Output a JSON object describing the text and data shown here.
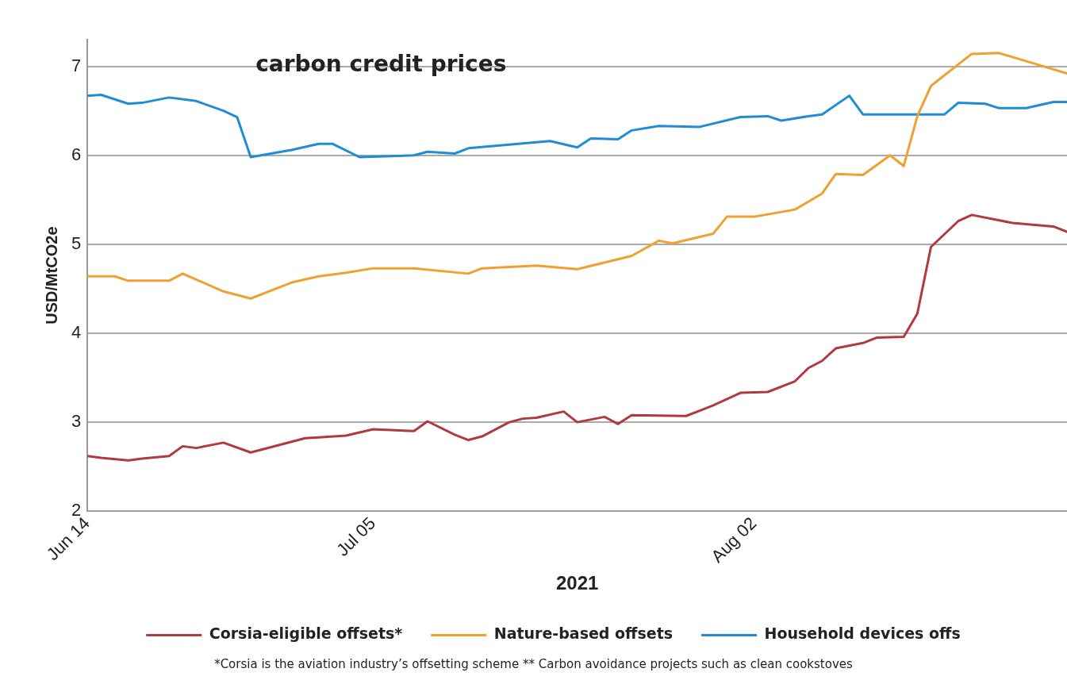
{
  "chart_data": {
    "type": "line",
    "title": "carbon credit prices",
    "xlabel": "2021",
    "ylabel": "USD/MtCO2e",
    "xlim": [
      "2021-06-14",
      "2021-08-25"
    ],
    "xticks": [
      {
        "value": "2021-06-14",
        "label": "Jun 14"
      },
      {
        "value": "2021-07-05",
        "label": "Jul 05"
      },
      {
        "value": "2021-08-02",
        "label": "Aug 02"
      }
    ],
    "ylim": [
      2,
      7.3
    ],
    "yticks": [
      2,
      3,
      4,
      5,
      6,
      7
    ],
    "grid": "y",
    "legend": "bottom",
    "marker": "none",
    "line_style": "solid",
    "annotations": [
      "*Corsia is the aviation industry’s offsetting scheme  ** Carbon avoidance projects such as clean cookstoves"
    ],
    "series": [
      {
        "name": "Corsia-eligible offsets*",
        "color": "#b03a3e",
        "x": [
          "2021-06-14",
          "2021-06-15",
          "2021-06-17",
          "2021-06-18",
          "2021-06-20",
          "2021-06-21",
          "2021-06-22",
          "2021-06-24",
          "2021-06-26",
          "2021-06-28",
          "2021-06-30",
          "2021-07-01",
          "2021-07-03",
          "2021-07-05",
          "2021-07-08",
          "2021-07-09",
          "2021-07-11",
          "2021-07-12",
          "2021-07-13",
          "2021-07-15",
          "2021-07-16",
          "2021-07-17",
          "2021-07-19",
          "2021-07-20",
          "2021-07-22",
          "2021-07-23",
          "2021-07-24",
          "2021-07-28",
          "2021-07-29",
          "2021-07-30",
          "2021-08-01",
          "2021-08-03",
          "2021-08-05",
          "2021-08-06",
          "2021-08-07",
          "2021-08-08",
          "2021-08-10",
          "2021-08-11",
          "2021-08-13",
          "2021-08-14",
          "2021-08-15",
          "2021-08-17",
          "2021-08-18",
          "2021-08-21",
          "2021-08-24",
          "2021-08-25"
        ],
        "values": [
          2.62,
          2.6,
          2.57,
          2.59,
          2.62,
          2.73,
          2.71,
          2.77,
          2.66,
          2.74,
          2.82,
          2.83,
          2.85,
          2.92,
          2.9,
          3.01,
          2.86,
          2.8,
          2.84,
          3.0,
          3.04,
          3.05,
          3.12,
          3.0,
          3.06,
          2.98,
          3.08,
          3.07,
          3.13,
          3.19,
          3.33,
          3.34,
          3.46,
          3.61,
          3.69,
          3.83,
          3.89,
          3.95,
          3.96,
          4.22,
          4.97,
          5.26,
          5.33,
          5.24,
          5.2,
          5.14
        ]
      },
      {
        "name": "Nature-based offsets",
        "color": "#f0a030",
        "x": [
          "2021-06-14",
          "2021-06-16",
          "2021-06-17",
          "2021-06-20",
          "2021-06-21",
          "2021-06-24",
          "2021-06-26",
          "2021-06-29",
          "2021-07-01",
          "2021-07-03",
          "2021-07-05",
          "2021-07-08",
          "2021-07-12",
          "2021-07-13",
          "2021-07-17",
          "2021-07-20",
          "2021-07-24",
          "2021-07-26",
          "2021-07-27",
          "2021-07-30",
          "2021-07-31",
          "2021-08-02",
          "2021-08-05",
          "2021-08-07",
          "2021-08-08",
          "2021-08-10",
          "2021-08-12",
          "2021-08-13",
          "2021-08-14",
          "2021-08-15",
          "2021-08-18",
          "2021-08-20",
          "2021-08-25"
        ],
        "values": [
          4.64,
          4.64,
          4.59,
          4.59,
          4.67,
          4.47,
          4.39,
          4.57,
          4.64,
          4.68,
          4.73,
          4.73,
          4.67,
          4.73,
          4.76,
          4.72,
          4.87,
          5.04,
          5.01,
          5.12,
          5.31,
          5.31,
          5.39,
          5.57,
          5.79,
          5.78,
          6.0,
          5.88,
          6.44,
          6.78,
          7.14,
          7.15,
          6.92
        ]
      },
      {
        "name": "Household devices offs",
        "color": "#1f8dd6",
        "x": [
          "2021-06-14",
          "2021-06-15",
          "2021-06-17",
          "2021-06-18",
          "2021-06-20",
          "2021-06-22",
          "2021-06-24",
          "2021-06-25",
          "2021-06-26",
          "2021-06-29",
          "2021-07-01",
          "2021-07-02",
          "2021-07-04",
          "2021-07-08",
          "2021-07-09",
          "2021-07-11",
          "2021-07-12",
          "2021-07-18",
          "2021-07-20",
          "2021-07-21",
          "2021-07-23",
          "2021-07-24",
          "2021-07-26",
          "2021-07-29",
          "2021-08-01",
          "2021-08-03",
          "2021-08-04",
          "2021-08-06",
          "2021-08-07",
          "2021-08-09",
          "2021-08-10",
          "2021-08-16",
          "2021-08-17",
          "2021-08-19",
          "2021-08-20",
          "2021-08-22",
          "2021-08-24",
          "2021-08-25"
        ],
        "values": [
          6.67,
          6.68,
          6.58,
          6.59,
          6.65,
          6.61,
          6.5,
          6.43,
          5.98,
          6.06,
          6.13,
          6.13,
          5.98,
          6.0,
          6.04,
          6.02,
          6.08,
          6.16,
          6.09,
          6.19,
          6.18,
          6.28,
          6.33,
          6.32,
          6.43,
          6.44,
          6.39,
          6.44,
          6.46,
          6.67,
          6.46,
          6.46,
          6.59,
          6.58,
          6.53,
          6.53,
          6.6,
          6.6
        ]
      }
    ]
  }
}
